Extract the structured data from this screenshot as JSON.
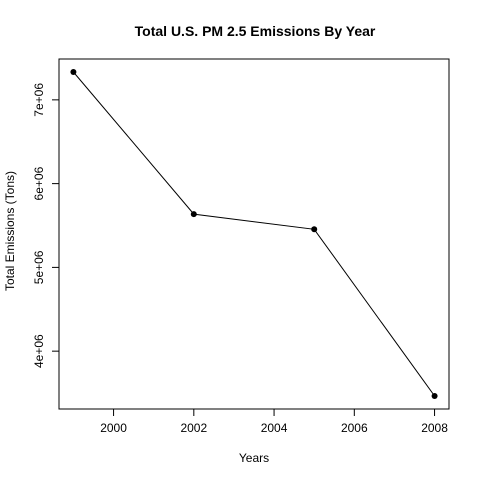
{
  "chart_data": {
    "type": "line",
    "title": "Total U.S. PM 2.5 Emissions By Year",
    "xlabel": "Years",
    "ylabel": "Total Emissions (Tons)",
    "x": [
      1999,
      2002,
      2005,
      2008
    ],
    "values": [
      7332967,
      5635780,
      5454703,
      3464206
    ],
    "xlim": [
      1999,
      2008
    ],
    "ylim": [
      3464206,
      7332967
    ],
    "x_ticks": [
      2000,
      2002,
      2004,
      2006,
      2008
    ],
    "x_tick_labels": [
      "2000",
      "2002",
      "2004",
      "2006",
      "2008"
    ],
    "y_ticks": [
      4000000,
      5000000,
      6000000,
      7000000
    ],
    "y_tick_labels": [
      "4e+06",
      "5e+06",
      "6e+06",
      "7e+06"
    ],
    "grid": false,
    "legend": "none",
    "line_color": "#000000",
    "marker": "filled-circle"
  }
}
